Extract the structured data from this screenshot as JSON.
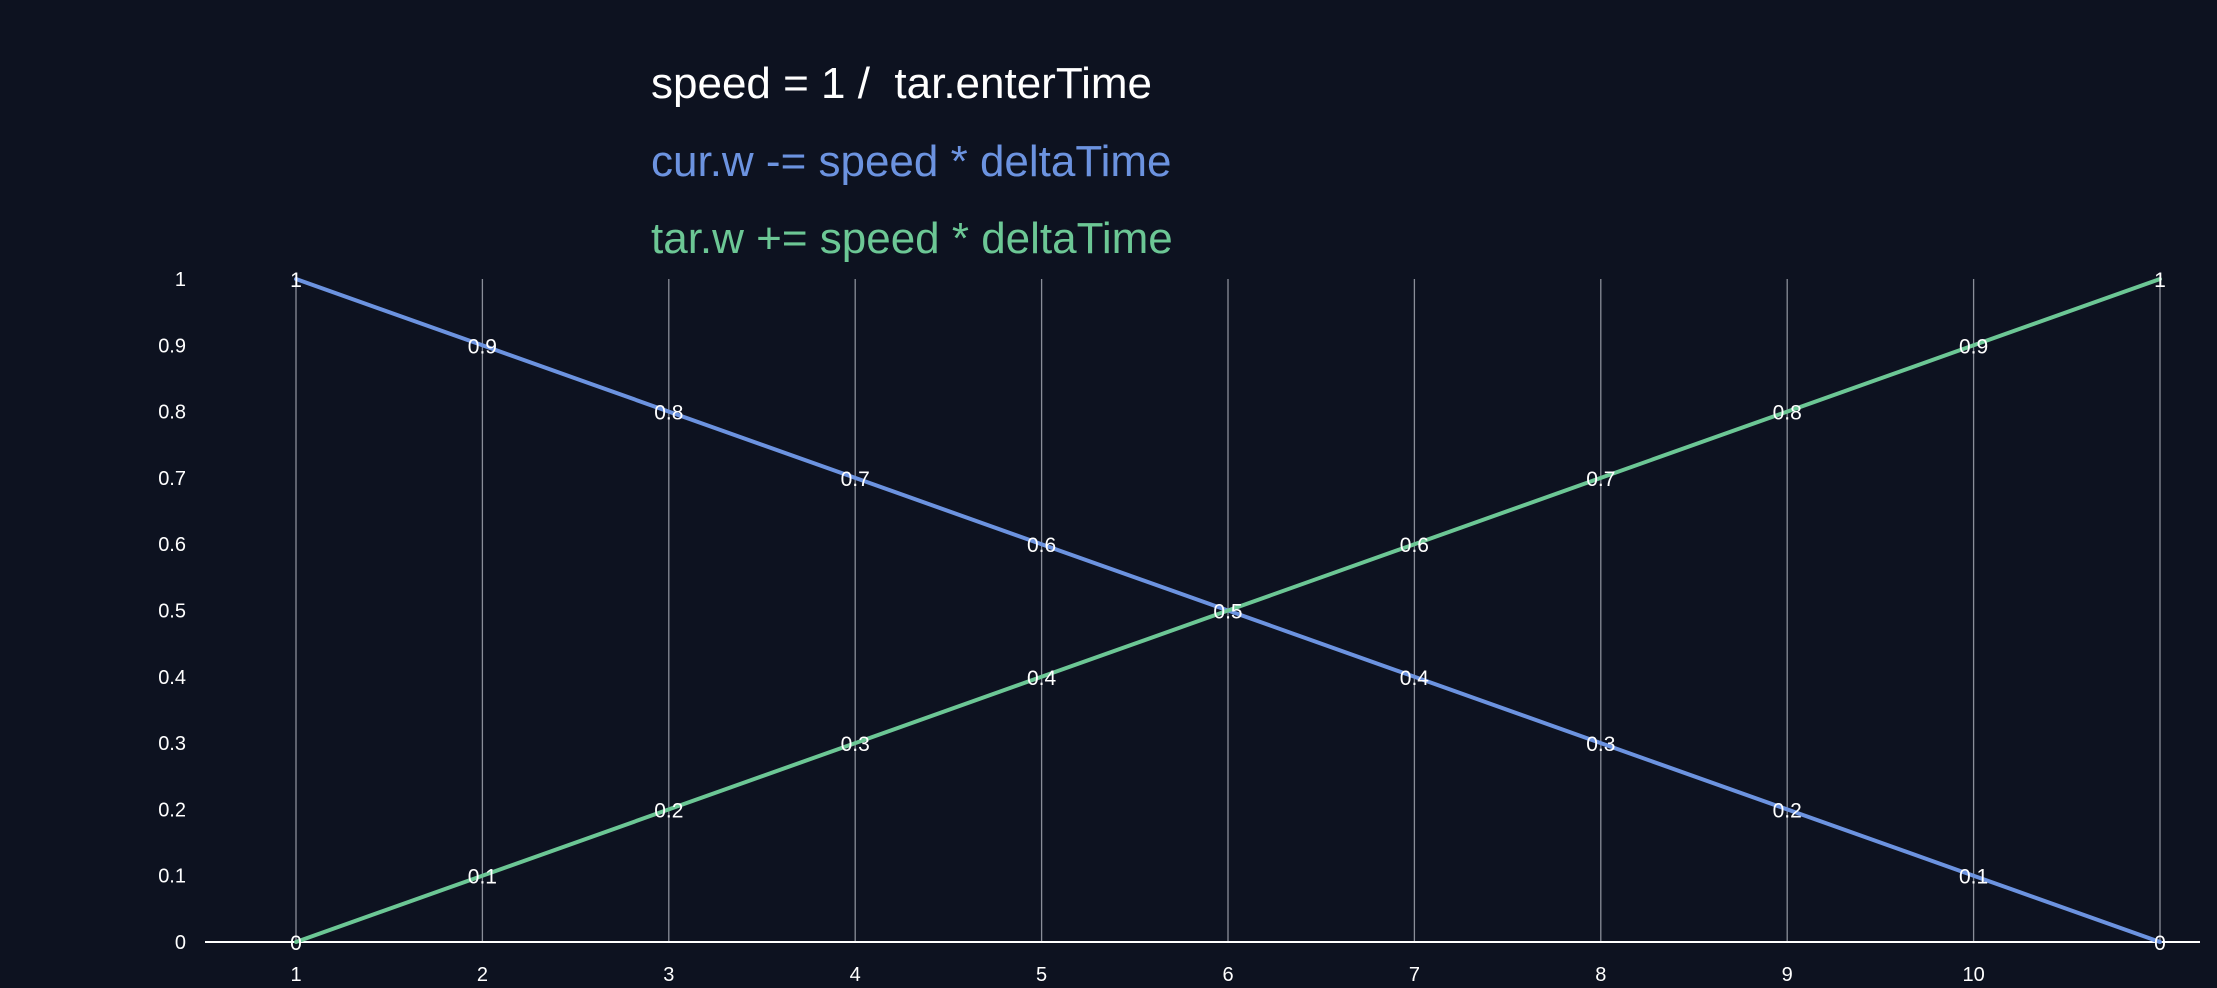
{
  "equations": {
    "speed": "speed = 1 /  tar.enterTime",
    "cur": "cur.w -= speed * deltaTime",
    "tar": "tar.w += speed * deltaTime"
  },
  "colors": {
    "background": "#0d1220",
    "text": "#ffffff",
    "cur": "#6c93e0",
    "tar": "#6cc795",
    "gridline": "#8a8e99",
    "axis": "#ffffff"
  },
  "chart_data": {
    "type": "line",
    "x": [
      1,
      2,
      3,
      4,
      5,
      6,
      7,
      8,
      9,
      10,
      11
    ],
    "x_tick_labels": [
      "1",
      "2",
      "3",
      "4",
      "5",
      "6",
      "7",
      "8",
      "9",
      "10",
      ""
    ],
    "y_ticks": [
      "0",
      "0.1",
      "0.2",
      "0.3",
      "0.4",
      "0.5",
      "0.6",
      "0.7",
      "0.8",
      "0.9",
      "1"
    ],
    "ylim": [
      0,
      1
    ],
    "xlim": [
      1,
      11
    ],
    "grid": "vertical lines at each x",
    "legend": "none",
    "series": [
      {
        "key": "cur",
        "values": [
          1,
          0.9,
          0.8,
          0.7,
          0.6,
          0.5,
          0.4,
          0.3,
          0.2,
          0.1,
          0
        ],
        "labels": [
          "1",
          "0.9",
          "0.8",
          "0.7",
          "0.6",
          "0.5",
          "0.4",
          "0.3",
          "0.2",
          "0.1",
          "0"
        ]
      },
      {
        "key": "tar",
        "values": [
          0,
          0.1,
          0.2,
          0.3,
          0.4,
          0.5,
          0.6,
          0.7,
          0.8,
          0.9,
          1
        ],
        "labels": [
          "0",
          "0.1",
          "0.2",
          "0.3",
          "0.4",
          "",
          "0.6",
          "0.7",
          "0.8",
          "0.9",
          "1"
        ]
      }
    ]
  }
}
